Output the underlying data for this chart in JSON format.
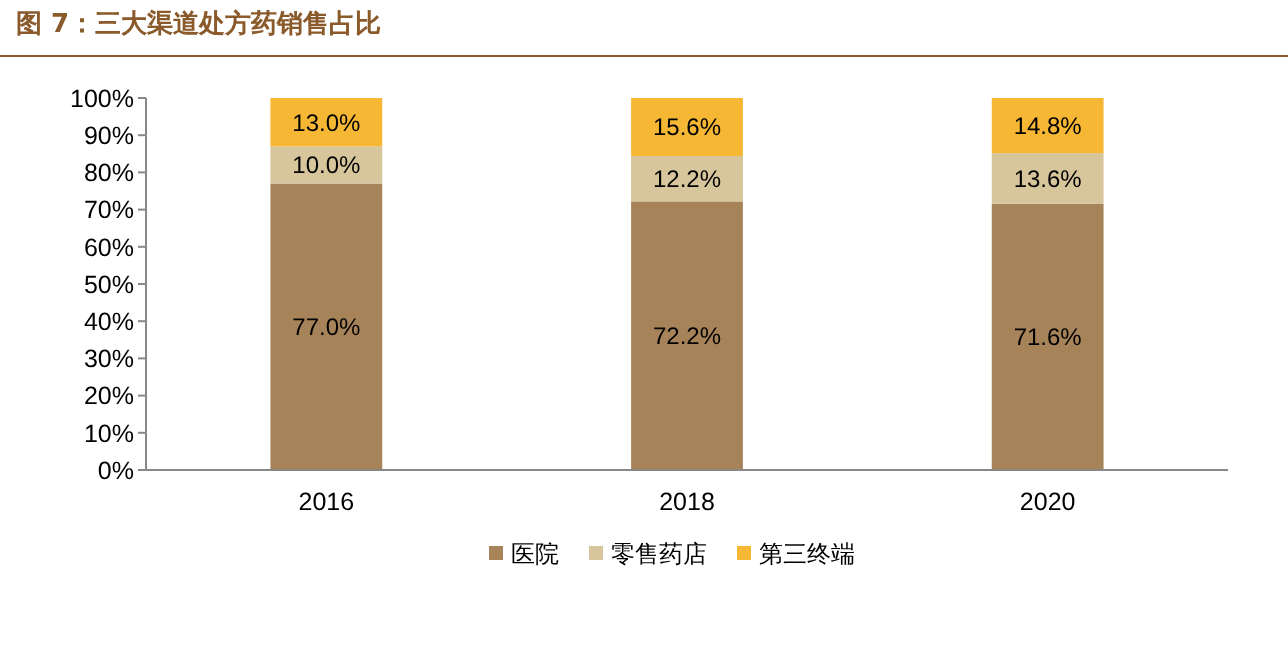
{
  "chart_data": {
    "type": "bar",
    "title": "图 7：三大渠道处方药销售占比",
    "categories": [
      "2016",
      "2018",
      "2020"
    ],
    "stacked": true,
    "legend": "bottom",
    "ylim": [
      0,
      100
    ],
    "yticks": [
      {
        "value": 0,
        "label": "0%"
      },
      {
        "value": 10,
        "label": "10%"
      },
      {
        "value": 20,
        "label": "20%"
      },
      {
        "value": 30,
        "label": "30%"
      },
      {
        "value": 40,
        "label": "40%"
      },
      {
        "value": 50,
        "label": "50%"
      },
      {
        "value": 60,
        "label": "60%"
      },
      {
        "value": 70,
        "label": "70%"
      },
      {
        "value": 80,
        "label": "80%"
      },
      {
        "value": 90,
        "label": "90%"
      },
      {
        "value": 100,
        "label": "100%"
      }
    ],
    "series": [
      {
        "name": "医院",
        "color": "#a7835a",
        "values": [
          77.0,
          72.2,
          71.6
        ],
        "value_labels": [
          "77.0%",
          "72.2%",
          "71.6%"
        ]
      },
      {
        "name": "零售药店",
        "color": "#d7c59b",
        "values": [
          10.0,
          12.2,
          13.6
        ],
        "value_labels": [
          "10.0%",
          "12.2%",
          "13.6%"
        ]
      },
      {
        "name": "第三终端",
        "color": "#f6b834",
        "values": [
          13.0,
          15.6,
          14.8
        ],
        "value_labels": [
          "13.0%",
          "15.6%",
          "14.8%"
        ]
      }
    ]
  }
}
